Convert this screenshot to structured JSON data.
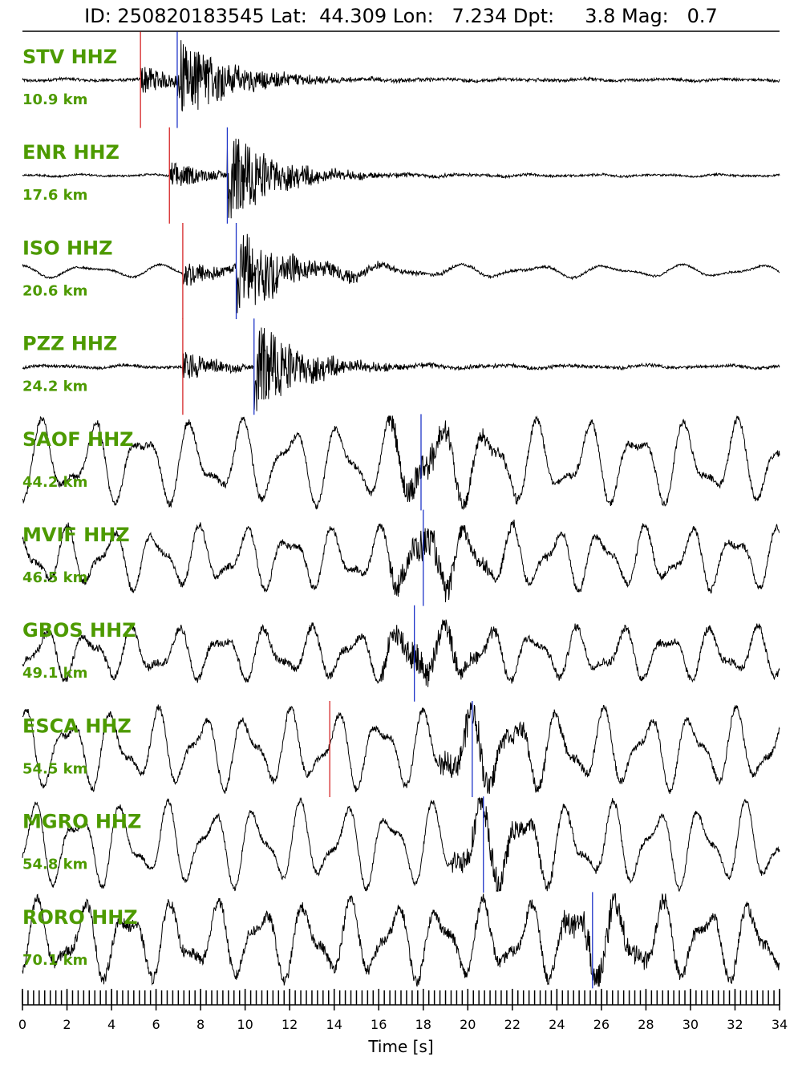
{
  "title": "ID: 250820183545 Lat:  44.309 Lon:   7.234 Dpt:     3.8 Mag:   0.7",
  "chart_data": {
    "type": "line",
    "title": "ID: 250820183545 Lat:  44.309 Lon:   7.234 Dpt:     3.8 Mag:   0.7",
    "xlabel": "Time [s]",
    "ylabel": "",
    "xlim": [
      0,
      34
    ],
    "xticks": [
      0,
      2,
      4,
      6,
      8,
      10,
      12,
      14,
      16,
      18,
      20,
      22,
      24,
      26,
      28,
      30,
      32,
      34
    ],
    "minor_tick_step": 0.25,
    "grid": false,
    "pick_colors": {
      "P": "#d62728",
      "S": "#1f35c8"
    },
    "label_color": "#4d9a00",
    "trace_color": "#000000",
    "series": [
      {
        "name": "STV HHZ",
        "distance": "10.9 km",
        "p_pick": 5.3,
        "s_pick": 6.95,
        "kind": "local",
        "noise": 0.03,
        "lp_amp": 0.02,
        "lp_freq": 0.3
      },
      {
        "name": "ENR HHZ",
        "distance": "17.6 km",
        "p_pick": 6.6,
        "s_pick": 9.2,
        "kind": "local",
        "noise": 0.02,
        "lp_amp": 0.02,
        "lp_freq": 0.35
      },
      {
        "name": "ISO HHZ",
        "distance": "20.6 km",
        "p_pick": 7.2,
        "s_pick": 9.6,
        "kind": "local",
        "noise": 0.02,
        "lp_amp": 0.12,
        "lp_freq": 0.3
      },
      {
        "name": "PZZ HHZ",
        "distance": "24.2 km",
        "p_pick": 7.2,
        "s_pick": 10.4,
        "kind": "local",
        "noise": 0.03,
        "lp_amp": 0.03,
        "lp_freq": 0.3
      },
      {
        "name": "SAOF HHZ",
        "distance": "44.2 km",
        "p_pick": null,
        "s_pick": 17.9,
        "kind": "regional",
        "noise": 0.07,
        "lp_amp": 0.8,
        "lp_freq": 0.45
      },
      {
        "name": "MVIF HHZ",
        "distance": "46.5 km",
        "p_pick": null,
        "s_pick": 18.0,
        "kind": "regional",
        "noise": 0.07,
        "lp_amp": 0.6,
        "lp_freq": 0.5
      },
      {
        "name": "GBOS HHZ",
        "distance": "49.1 km",
        "p_pick": null,
        "s_pick": 17.6,
        "kind": "regional",
        "noise": 0.08,
        "lp_amp": 0.5,
        "lp_freq": 0.5
      },
      {
        "name": "ESCA HHZ",
        "distance": "54.5 km",
        "p_pick": 13.8,
        "s_pick": 20.2,
        "kind": "regional",
        "noise": 0.07,
        "lp_amp": 0.75,
        "lp_freq": 0.5
      },
      {
        "name": "MGRO HHZ",
        "distance": "54.8 km",
        "p_pick": null,
        "s_pick": 20.7,
        "kind": "regional",
        "noise": 0.06,
        "lp_amp": 0.8,
        "lp_freq": 0.5
      },
      {
        "name": "RORO HHZ",
        "distance": "70.1 km",
        "p_pick": null,
        "s_pick": 25.6,
        "kind": "regional",
        "noise": 0.12,
        "lp_amp": 0.75,
        "lp_freq": 0.5
      }
    ]
  }
}
